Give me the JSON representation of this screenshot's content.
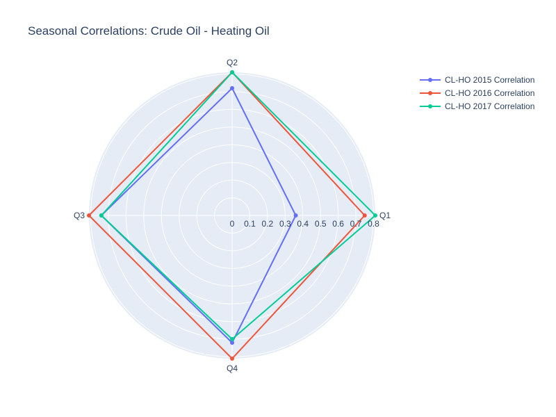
{
  "chart_data": {
    "type": "polar-line",
    "title": "Seasonal Correlations: Crude Oil - Heating Oil",
    "categories": [
      "Q1",
      "Q2",
      "Q3",
      "Q4"
    ],
    "radial_range": [
      0,
      0.81
    ],
    "radial_ticks": [
      "0",
      "0.1",
      "0.2",
      "0.3",
      "0.4",
      "0.5",
      "0.6",
      "0.7",
      "0.8"
    ],
    "legend_position": "top-right",
    "background_color": "#e5ecf6",
    "grid_color": "#ffffff",
    "series": [
      {
        "name": "CL-HO 2015 Correlation",
        "color": "#636efa",
        "values": [
          0.36,
          0.72,
          0.74,
          0.72
        ]
      },
      {
        "name": "CL-HO 2016 Correlation",
        "color": "#ef553b",
        "values": [
          0.75,
          0.81,
          0.81,
          0.81
        ]
      },
      {
        "name": "CL-HO 2017 Correlation",
        "color": "#00cc96",
        "values": [
          0.81,
          0.81,
          0.74,
          0.7
        ]
      }
    ]
  }
}
